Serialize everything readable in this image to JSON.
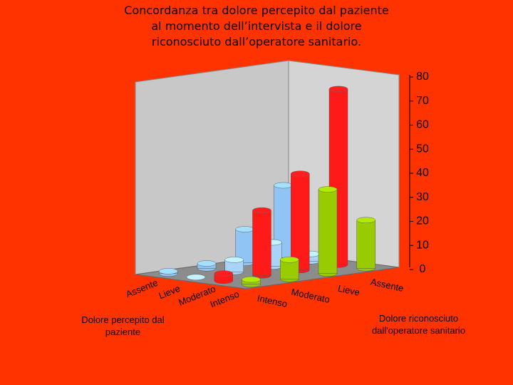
{
  "chart_data": {
    "type": "bar3d",
    "title": "Concordanza tra dolore percepito dal paziente al momento dell’intervista e il dolore riconosciuto dall’operatore sanitario.",
    "series_axis_title": "Dolore percepito dal paziente",
    "category_axis_title": "Dolore riconosciuto dall'operatore sanitario",
    "categories": [
      "Intenso",
      "Moderato",
      "Lieve",
      "Assente"
    ],
    "series": [
      {
        "name": "Assente",
        "color": "#8fc4f4",
        "values": [
          1,
          2,
          14,
          30
        ]
      },
      {
        "name": "Lieve",
        "color": "#a9d4f7",
        "values": [
          0,
          5,
          10,
          3
        ]
      },
      {
        "name": "Moderato",
        "color": "#ff1a1a",
        "values": [
          3,
          27,
          40,
          73
        ]
      },
      {
        "name": "Intenso",
        "color": "#99cc00",
        "values": [
          2,
          8,
          35,
          20
        ]
      }
    ],
    "ylim": [
      0,
      80
    ],
    "yticks": [
      0,
      10,
      20,
      30,
      40,
      50,
      60,
      70,
      80
    ]
  }
}
